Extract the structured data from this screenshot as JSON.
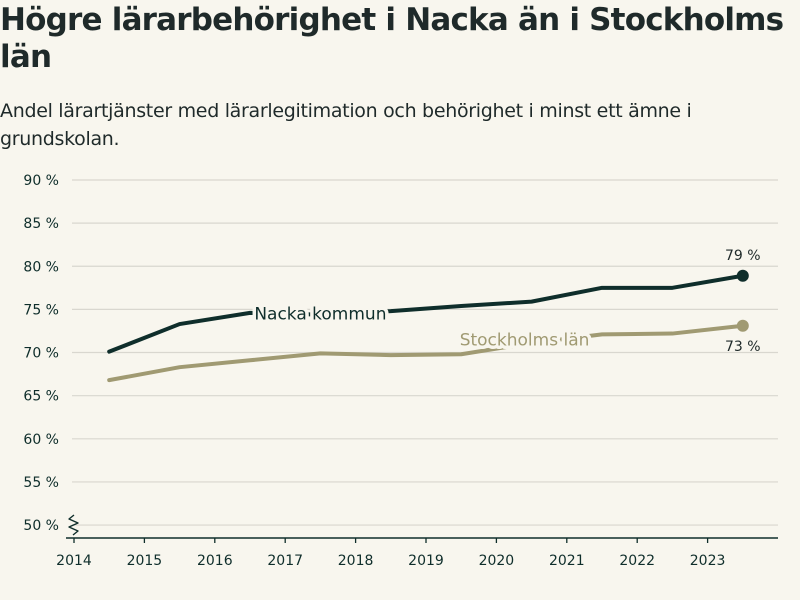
{
  "header": {
    "title": "Högre lärarbehörighet i Nacka än i Stockholms län",
    "subtitle": "Andel lärartjänster med lärarlegitimation och behörighet i minst ett ämne i grundskolan."
  },
  "colors": {
    "background": "#f8f6ee",
    "nacka": "#0f2e2b",
    "stockholm": "#a09a72",
    "grid": "#d9d7cf",
    "axis": "#0f2e2b"
  },
  "chart_data": {
    "type": "line",
    "title": "Högre lärarbehörighet i Nacka än i Stockholms län",
    "subtitle": "Andel lärartjänster med lärarlegitimation och behörighet i minst ett ämne i grundskolan.",
    "xlabel": "",
    "ylabel": "",
    "x_ticks": [
      2014,
      2015,
      2016,
      2017,
      2018,
      2019,
      2020,
      2021,
      2022,
      2023
    ],
    "x_tick_labels": [
      "2014",
      "2015",
      "2016",
      "2017",
      "2018",
      "2019",
      "2020",
      "2021",
      "2022",
      "2023"
    ],
    "xlim": [
      2014,
      2024
    ],
    "y_ticks": [
      50,
      55,
      60,
      65,
      70,
      75,
      80,
      85,
      90
    ],
    "y_tick_labels": [
      "50 %",
      "55 %",
      "60 %",
      "65 %",
      "70 %",
      "75 %",
      "80 %",
      "85 %",
      "90 %"
    ],
    "ylim": [
      48.5,
      90
    ],
    "axis_break": true,
    "grid": true,
    "series": [
      {
        "name": "Nacka kommun",
        "label": "Nacka kommun",
        "color": "#0f2e2b",
        "x": [
          2014.5,
          2015.5,
          2016.5,
          2017.5,
          2018.5,
          2019.5,
          2020.5,
          2021.5,
          2022.5,
          2023.5
        ],
        "values": [
          70.1,
          73.3,
          74.6,
          74.4,
          74.8,
          75.4,
          75.9,
          77.5,
          77.5,
          78.9
        ],
        "end_label": "79 %",
        "label_x": 2017.5,
        "label_y": 74.5
      },
      {
        "name": "Stockholms län",
        "label": "Stockholms län",
        "color": "#a09a72",
        "x": [
          2014.5,
          2015.5,
          2016.5,
          2017.5,
          2018.5,
          2019.5,
          2020.5,
          2021.5,
          2022.5,
          2023.5
        ],
        "values": [
          66.8,
          68.3,
          69.1,
          69.9,
          69.7,
          69.8,
          71.1,
          72.1,
          72.2,
          73.1
        ],
        "end_label": "73 %",
        "label_x": 2020.4,
        "label_y": 71.5
      }
    ]
  }
}
